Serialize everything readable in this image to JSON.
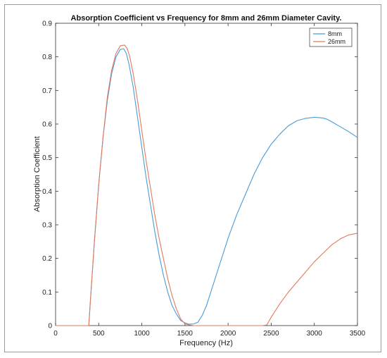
{
  "chart_data": {
    "type": "line",
    "title": "Absorption Coefficient vs Frequency for 8mm and 26mm Diameter Cavity.",
    "xlabel": "Frequency (Hz)",
    "ylabel": "Absorption Coefficient",
    "xlim": [
      0,
      3500
    ],
    "ylim": [
      0,
      0.9
    ],
    "xticks": [
      0,
      500,
      1000,
      1500,
      2000,
      2500,
      3000,
      3500
    ],
    "yticks": [
      0,
      0.1,
      0.2,
      0.3,
      0.4,
      0.5,
      0.6,
      0.7,
      0.8,
      0.9
    ],
    "grid": false,
    "legend_position": "top-right",
    "series": [
      {
        "name": "8mm",
        "color": "#4a9bd6",
        "x": [
          0,
          385,
          400,
          450,
          500,
          550,
          600,
          650,
          700,
          750,
          790,
          820,
          850,
          900,
          950,
          1000,
          1050,
          1100,
          1150,
          1200,
          1250,
          1300,
          1350,
          1400,
          1450,
          1500,
          1550,
          1600,
          1650,
          1700,
          1750,
          1800,
          1900,
          2000,
          2100,
          2200,
          2300,
          2400,
          2500,
          2600,
          2700,
          2800,
          2900,
          3000,
          3100,
          3150,
          3200,
          3300,
          3400,
          3500
        ],
        "y": [
          0,
          0,
          0.06,
          0.25,
          0.42,
          0.56,
          0.67,
          0.75,
          0.8,
          0.822,
          0.824,
          0.81,
          0.78,
          0.71,
          0.62,
          0.53,
          0.44,
          0.36,
          0.28,
          0.21,
          0.15,
          0.1,
          0.06,
          0.035,
          0.015,
          0.008,
          0.004,
          0.005,
          0.01,
          0.03,
          0.06,
          0.1,
          0.18,
          0.26,
          0.33,
          0.39,
          0.45,
          0.5,
          0.54,
          0.57,
          0.595,
          0.61,
          0.617,
          0.62,
          0.618,
          0.614,
          0.607,
          0.592,
          0.577,
          0.56
        ]
      },
      {
        "name": "26mm",
        "color": "#e07a5f",
        "x": [
          0,
          385,
          400,
          450,
          500,
          550,
          600,
          650,
          700,
          750,
          800,
          830,
          860,
          900,
          950,
          1000,
          1050,
          1100,
          1150,
          1200,
          1250,
          1300,
          1350,
          1400,
          1450,
          1500,
          1550,
          1600,
          1650,
          1700,
          1800,
          1900,
          2000,
          2100,
          2200,
          2300,
          2400,
          2450,
          2500,
          2600,
          2700,
          2800,
          2900,
          3000,
          3100,
          3200,
          3300,
          3400,
          3500
        ],
        "y": [
          0,
          0,
          0.06,
          0.25,
          0.42,
          0.56,
          0.68,
          0.76,
          0.81,
          0.833,
          0.835,
          0.825,
          0.8,
          0.75,
          0.67,
          0.58,
          0.49,
          0.41,
          0.33,
          0.26,
          0.2,
          0.14,
          0.09,
          0.05,
          0.02,
          0.005,
          0.002,
          0,
          0,
          0,
          0,
          0,
          0,
          0,
          0,
          0,
          0,
          0.002,
          0.025,
          0.065,
          0.1,
          0.13,
          0.16,
          0.19,
          0.215,
          0.24,
          0.258,
          0.27,
          0.275
        ]
      }
    ]
  }
}
